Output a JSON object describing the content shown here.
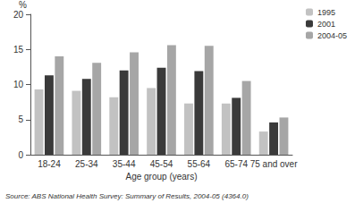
{
  "chart_data": {
    "type": "bar",
    "x_label": "Age group (years)",
    "y_label": "%",
    "source": "Source: ABS National Health Survey: Summary of Results, 2004-05 (4364.0)",
    "categories": [
      "18-24",
      "25-34",
      "35-44",
      "45-54",
      "55-64",
      "65-74",
      "75 and over"
    ],
    "series": [
      {
        "name": "1995",
        "color": "#c2c2c2",
        "values": [
          9.3,
          9.1,
          8.2,
          9.5,
          7.3,
          7.3,
          3.3
        ]
      },
      {
        "name": "2001",
        "color": "#3a3a3a",
        "values": [
          11.3,
          10.8,
          12.0,
          12.4,
          11.9,
          8.1,
          4.6
        ]
      },
      {
        "name": "2004-05",
        "color": "#a6a6a6",
        "values": [
          14.0,
          13.1,
          14.6,
          15.6,
          15.5,
          10.5,
          5.3
        ]
      }
    ],
    "ylim": [
      0,
      20
    ],
    "yticks": [
      0,
      5,
      10,
      15,
      20
    ],
    "grid": false,
    "legend": "top-right"
  }
}
